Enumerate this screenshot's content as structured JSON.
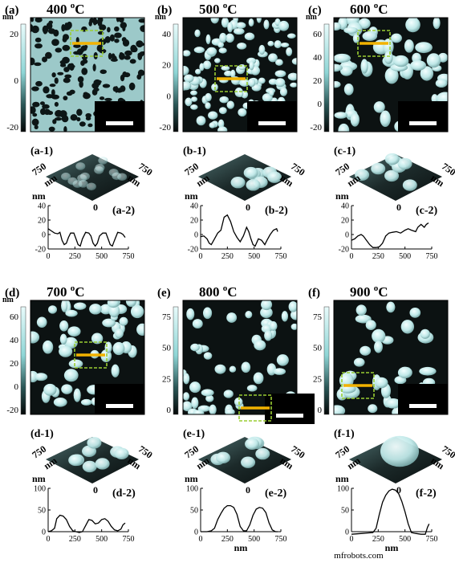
{
  "panels": [
    {
      "id": "a",
      "label": "(a)",
      "temp": "400",
      "unit": "oC",
      "scale_max": "20",
      "scale_ticks": [
        "20",
        "0",
        "-20"
      ],
      "scale_unit": "nm",
      "scalebar": "750 nm",
      "sub1": "(a-1)",
      "axis3d": [
        "750",
        "nm",
        "750",
        "nm",
        "0"
      ],
      "sub2": "(a-2)",
      "ylabel": "nm",
      "yticks": [
        "40",
        "20",
        "0",
        "-20"
      ],
      "xticks": [
        "0",
        "250",
        "500",
        "750"
      ],
      "xlabel": "",
      "profile": [
        [
          0,
          8
        ],
        [
          30,
          5
        ],
        [
          60,
          2
        ],
        [
          90,
          1
        ],
        [
          110,
          3
        ],
        [
          130,
          -8
        ],
        [
          150,
          -14
        ],
        [
          170,
          -12
        ],
        [
          190,
          -4
        ],
        [
          210,
          2
        ],
        [
          240,
          2
        ],
        [
          260,
          -6
        ],
        [
          280,
          -14
        ],
        [
          300,
          -16
        ],
        [
          320,
          -6
        ],
        [
          350,
          3
        ],
        [
          380,
          2
        ],
        [
          400,
          -2
        ],
        [
          420,
          -12
        ],
        [
          440,
          -16
        ],
        [
          460,
          -12
        ],
        [
          480,
          -2
        ],
        [
          510,
          2
        ],
        [
          540,
          2
        ],
        [
          560,
          -6
        ],
        [
          580,
          -14
        ],
        [
          600,
          -16
        ],
        [
          620,
          -8
        ],
        [
          650,
          3
        ],
        [
          680,
          2
        ],
        [
          700,
          0
        ],
        [
          720,
          -4
        ]
      ],
      "theme": "pores"
    },
    {
      "id": "b",
      "label": "(b)",
      "temp": "500",
      "unit": "oC",
      "scale_ticks": [
        "40",
        "20",
        "0",
        "-20"
      ],
      "scale_unit": "nm",
      "scalebar": "750 nm",
      "sub1": "(b-1)",
      "axis3d": [
        "750",
        "nm",
        "750",
        "nm",
        "0"
      ],
      "sub2": "(b-2)",
      "ylabel": "nm",
      "yticks": [
        "40",
        "20",
        "0",
        "-20"
      ],
      "xticks": [
        "0",
        "250",
        "500",
        "750"
      ],
      "xlabel": "",
      "profile": [
        [
          0,
          -3
        ],
        [
          30,
          -2
        ],
        [
          60,
          -6
        ],
        [
          80,
          -12
        ],
        [
          100,
          -14
        ],
        [
          130,
          -6
        ],
        [
          160,
          2
        ],
        [
          190,
          6
        ],
        [
          220,
          24
        ],
        [
          250,
          27
        ],
        [
          280,
          18
        ],
        [
          310,
          4
        ],
        [
          340,
          -4
        ],
        [
          370,
          -10
        ],
        [
          400,
          -2
        ],
        [
          430,
          10
        ],
        [
          450,
          4
        ],
        [
          470,
          -6
        ],
        [
          490,
          -14
        ],
        [
          510,
          -16
        ],
        [
          540,
          -6
        ],
        [
          570,
          -8
        ],
        [
          600,
          -14
        ],
        [
          620,
          -8
        ],
        [
          650,
          0
        ],
        [
          680,
          6
        ],
        [
          710,
          8
        ],
        [
          720,
          4
        ]
      ],
      "theme": "bumps"
    },
    {
      "id": "c",
      "label": "(c)",
      "temp": "600",
      "unit": "oC",
      "scale_ticks": [
        "60",
        "40",
        "20",
        "0",
        "-20"
      ],
      "scale_unit": "nm",
      "scalebar": "750 nm",
      "sub1": "(c-1)",
      "axis3d": [
        "750",
        "nm",
        "750",
        "nm",
        "0"
      ],
      "sub2": "(c-2)",
      "ylabel": "nm",
      "yticks": [
        "40",
        "20",
        "0",
        "-20"
      ],
      "xticks": [
        "0",
        "250",
        "500",
        "750"
      ],
      "xlabel": "",
      "profile": [
        [
          0,
          -8
        ],
        [
          30,
          -6
        ],
        [
          60,
          -2
        ],
        [
          90,
          0
        ],
        [
          110,
          -2
        ],
        [
          140,
          -8
        ],
        [
          170,
          -14
        ],
        [
          200,
          -18
        ],
        [
          230,
          -18
        ],
        [
          260,
          -17
        ],
        [
          290,
          -12
        ],
        [
          320,
          -2
        ],
        [
          350,
          2
        ],
        [
          380,
          3
        ],
        [
          420,
          4
        ],
        [
          460,
          2
        ],
        [
          500,
          6
        ],
        [
          530,
          8
        ],
        [
          560,
          6
        ],
        [
          600,
          4
        ],
        [
          620,
          10
        ],
        [
          650,
          14
        ],
        [
          680,
          10
        ],
        [
          700,
          14
        ],
        [
          720,
          16
        ]
      ],
      "theme": "blobs"
    },
    {
      "id": "d",
      "label": "(d)",
      "temp": "700",
      "unit": "oC",
      "scale_ticks": [
        "60",
        "40",
        "20",
        "0",
        "-20"
      ],
      "scale_unit": "nm",
      "scalebar": "750 nm",
      "sub1": "(d-1)",
      "axis3d": [
        "750",
        "nm",
        "750",
        "nm",
        "0"
      ],
      "sub2": "(d-2)",
      "ylabel": "nm",
      "yticks": [
        "100",
        "50",
        "0"
      ],
      "xticks": [
        "0",
        "250",
        "500",
        "750"
      ],
      "xlabel": "",
      "profile": [
        [
          0,
          0
        ],
        [
          30,
          2
        ],
        [
          60,
          8
        ],
        [
          80,
          30
        ],
        [
          110,
          38
        ],
        [
          140,
          36
        ],
        [
          170,
          28
        ],
        [
          200,
          12
        ],
        [
          230,
          2
        ],
        [
          260,
          0
        ],
        [
          290,
          -2
        ],
        [
          320,
          0
        ],
        [
          350,
          14
        ],
        [
          380,
          28
        ],
        [
          410,
          26
        ],
        [
          440,
          18
        ],
        [
          470,
          20
        ],
        [
          500,
          28
        ],
        [
          530,
          30
        ],
        [
          560,
          24
        ],
        [
          590,
          12
        ],
        [
          620,
          4
        ],
        [
          650,
          2
        ],
        [
          680,
          6
        ],
        [
          700,
          16
        ],
        [
          720,
          20
        ]
      ],
      "theme": "islands"
    },
    {
      "id": "e",
      "label": "(e)",
      "temp": "800",
      "unit": "oC",
      "scale_ticks": [
        "75",
        "50",
        "25",
        "0"
      ],
      "scale_unit": "",
      "scalebar": "750 nm",
      "sub1": "(e-1)",
      "axis3d": [
        "750",
        "nm",
        "750",
        "nm",
        "0"
      ],
      "sub2": "(e-2)",
      "ylabel": "nm",
      "yticks": [
        "100",
        "50",
        "0"
      ],
      "xticks": [
        "0",
        "250",
        "500",
        "750"
      ],
      "xlabel": "nm",
      "profile": [
        [
          0,
          0
        ],
        [
          60,
          0
        ],
        [
          100,
          2
        ],
        [
          130,
          8
        ],
        [
          160,
          28
        ],
        [
          190,
          42
        ],
        [
          220,
          54
        ],
        [
          250,
          60
        ],
        [
          280,
          60
        ],
        [
          310,
          56
        ],
        [
          340,
          40
        ],
        [
          370,
          12
        ],
        [
          400,
          2
        ],
        [
          430,
          2
        ],
        [
          460,
          16
        ],
        [
          490,
          38
        ],
        [
          520,
          52
        ],
        [
          550,
          56
        ],
        [
          580,
          54
        ],
        [
          610,
          44
        ],
        [
          640,
          20
        ],
        [
          670,
          4
        ],
        [
          700,
          0
        ],
        [
          720,
          0
        ]
      ],
      "theme": "dots"
    },
    {
      "id": "f",
      "label": "(f)",
      "temp": "900",
      "unit": "oC",
      "scale_ticks": [
        "75",
        "50",
        "25",
        "0"
      ],
      "scale_unit": "",
      "scalebar": "750 nm",
      "sub1": "(f-1)",
      "axis3d": [
        "750",
        "nm",
        "750",
        "nm",
        "0"
      ],
      "sub2": "(f-2)",
      "ylabel": "nm",
      "yticks": [
        "100",
        "50",
        "0"
      ],
      "xticks": [
        "0",
        "250",
        "500",
        "750"
      ],
      "xlabel": "nm",
      "profile": [
        [
          0,
          -6
        ],
        [
          50,
          -5
        ],
        [
          100,
          -4
        ],
        [
          150,
          -3
        ],
        [
          200,
          -2
        ],
        [
          230,
          8
        ],
        [
          260,
          40
        ],
        [
          290,
          68
        ],
        [
          320,
          84
        ],
        [
          350,
          94
        ],
        [
          380,
          98
        ],
        [
          410,
          96
        ],
        [
          440,
          88
        ],
        [
          470,
          70
        ],
        [
          500,
          46
        ],
        [
          530,
          18
        ],
        [
          560,
          -2
        ],
        [
          600,
          -4
        ],
        [
          650,
          -6
        ],
        [
          690,
          -6
        ],
        [
          710,
          10
        ],
        [
          725,
          18
        ]
      ],
      "theme": "large"
    }
  ],
  "watermark": "mfrobots.com"
}
